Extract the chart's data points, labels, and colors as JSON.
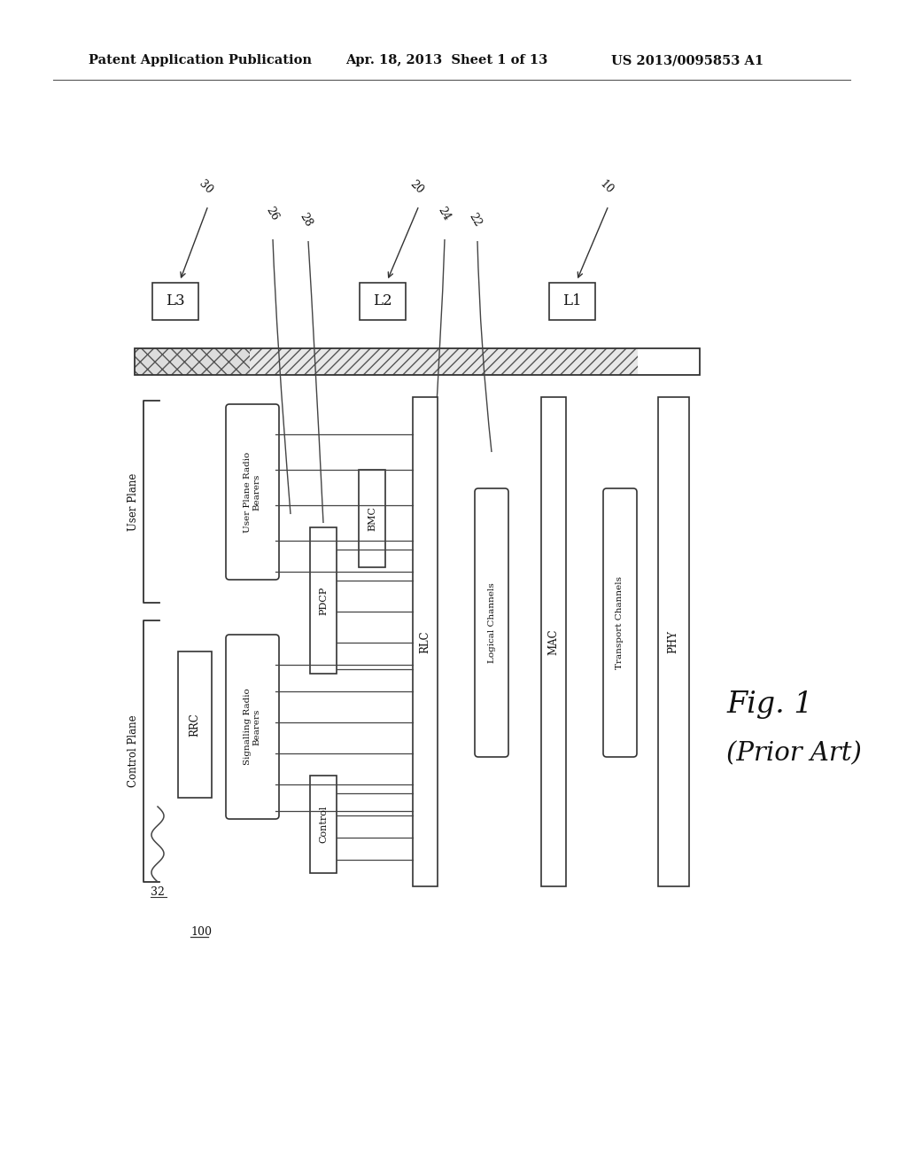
{
  "header_left": "Patent Application Publication",
  "header_mid": "Apr. 18, 2013  Sheet 1 of 13",
  "header_right": "US 2013/0095853 A1",
  "bg_color": "#ffffff",
  "text_color": "#1a1a1a",
  "fig_label_1": "Fig. 1",
  "fig_label_2": "(Prior Art)"
}
